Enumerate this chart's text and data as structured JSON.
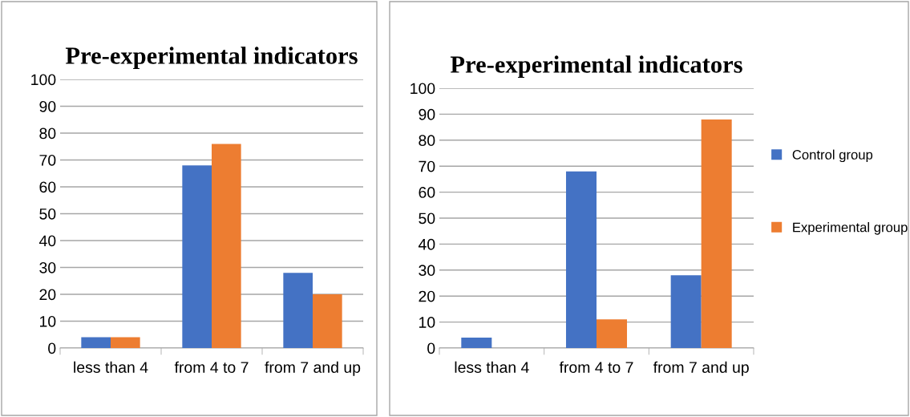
{
  "chart_data": [
    {
      "type": "bar",
      "title": "Pre-experimental indicators",
      "categories": [
        "less than 4",
        "from 4 to 7",
        "from 7 and up"
      ],
      "series": [
        {
          "color": "#4472c4",
          "values": [
            4,
            68,
            28
          ]
        },
        {
          "color": "#ed7d31",
          "values": [
            4,
            76,
            20
          ]
        }
      ],
      "ylim": [
        0,
        100
      ],
      "yticks": [
        0,
        10,
        20,
        30,
        40,
        50,
        60,
        70,
        80,
        90,
        100
      ],
      "grid": "y",
      "legend": false
    },
    {
      "type": "bar",
      "title": "Pre-experimental indicators",
      "categories": [
        "less than 4",
        "from 4 to 7",
        "from 7 and up"
      ],
      "series": [
        {
          "name": "Control group",
          "color": "#4472c4",
          "values": [
            4,
            68,
            28
          ]
        },
        {
          "name": "Experimental group",
          "color": "#ed7d31",
          "values": [
            0,
            11,
            88
          ]
        }
      ],
      "ylim": [
        0,
        100
      ],
      "yticks": [
        0,
        10,
        20,
        30,
        40,
        50,
        60,
        70,
        80,
        90,
        100
      ],
      "grid": "y",
      "legend": "right"
    }
  ]
}
